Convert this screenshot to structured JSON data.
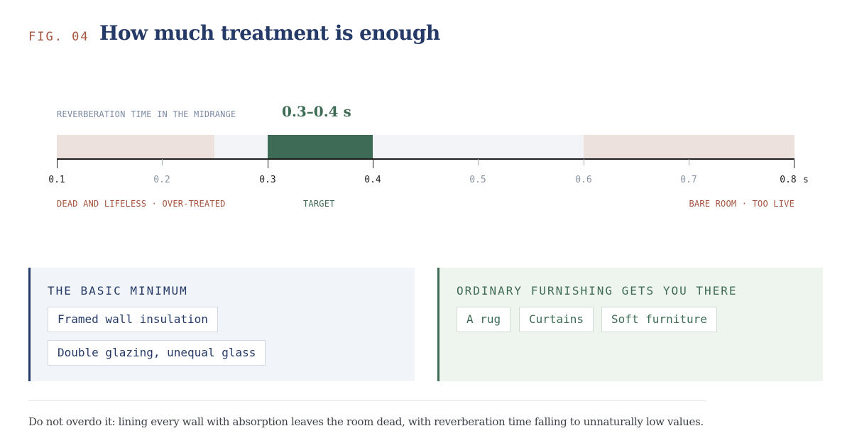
{
  "header": {
    "fig_label": "FIG. 04",
    "title": "How much treatment is enough"
  },
  "scale": {
    "label": "REVERBERATION TIME IN THE MIDRANGE",
    "target_range": "0.3–0.4 s",
    "unit": "s",
    "min": 0.1,
    "max": 0.8,
    "ticks": [
      "0.1",
      "0.2",
      "0.3",
      "0.4",
      "0.5",
      "0.6",
      "0.7",
      "0.8"
    ],
    "bands": [
      {
        "name": "over-treated",
        "from": 0.1,
        "to": 0.25,
        "color": "#ede1dd"
      },
      {
        "name": "acceptable-low",
        "from": 0.25,
        "to": 0.3,
        "color": "#f2f4f8"
      },
      {
        "name": "target",
        "from": 0.3,
        "to": 0.4,
        "color": "#3e6b55"
      },
      {
        "name": "acceptable-high",
        "from": 0.4,
        "to": 0.6,
        "color": "#f2f4f8"
      },
      {
        "name": "too-live",
        "from": 0.6,
        "to": 0.8,
        "color": "#ede1dd"
      }
    ],
    "zones": {
      "low": "DEAD AND LIFELESS · OVER-TREATED",
      "target": "TARGET",
      "high": "BARE ROOM · TOO LIVE"
    }
  },
  "panels": {
    "minimum": {
      "heading": "THE BASIC MINIMUM",
      "items": [
        "Framed wall insulation",
        "Double glazing, unequal glass"
      ],
      "accent": "#253a66"
    },
    "furnishing": {
      "heading": "ORDINARY FURNISHING GETS YOU THERE",
      "items": [
        "A rug",
        "Curtains",
        "Soft furniture"
      ],
      "accent": "#3e6b55"
    }
  },
  "footer": {
    "note": "Do not overdo it: lining every wall with absorption leaves the room dead, with reverberation time falling to unnaturally low values."
  },
  "colors": {
    "navy": "#253a66",
    "green": "#3e6b55",
    "rust": "#a4533d"
  }
}
